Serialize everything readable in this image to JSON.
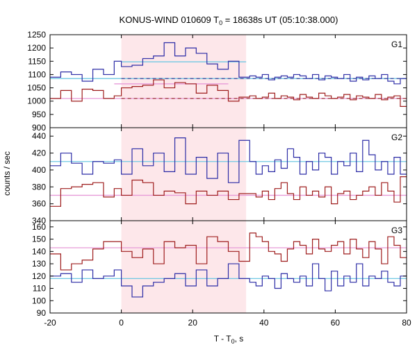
{
  "chart_data": {
    "type": "line",
    "title": "KONUS-WIND 010609 T",
    "title_sub": "0",
    "title_rest": " = 18638s UT (05:10:38.000)",
    "xlabel": "T - T",
    "xlabel_sub": "0",
    "xlabel_rest": ", s",
    "ylabel": "counts / sec",
    "xlim": [
      -20,
      80
    ],
    "xticks": [
      "-20",
      "0",
      "20",
      "40",
      "60",
      "80"
    ],
    "highlight_interval": [
      0,
      35
    ],
    "colors": {
      "blue": "#2c2ca6",
      "red": "#9e1c1c",
      "cyan": "#6fc8e3",
      "pink": "#e79ad8",
      "highlight": "#fde7ea"
    },
    "panels": [
      {
        "label": "G1",
        "ylim": [
          900,
          1250
        ],
        "yticks": [
          "1250",
          "1200",
          "1150",
          "1100",
          "1050",
          "1000",
          "950",
          "900"
        ],
        "bin_edges": [
          -20,
          -17,
          -14,
          -11,
          -8,
          -5,
          -2,
          0,
          3,
          6,
          9,
          12,
          15,
          18,
          21,
          24,
          27,
          30,
          33,
          36
        ],
        "blue_values": [
          1090,
          1110,
          1100,
          1075,
          1120,
          1100,
          1150,
          1130,
          1135,
          1160,
          1170,
          1220,
          1170,
          1200,
          1180,
          1140,
          1120,
          1150,
          1090
        ],
        "red_values": [
          1010,
          1040,
          1000,
          1045,
          1040,
          1010,
          1020,
          1050,
          1055,
          1060,
          1080,
          1050,
          1070,
          1065,
          1030,
          1060,
          1040,
          1000,
          1015
        ],
        "blue_after": [
          1095,
          1090,
          1100,
          1080,
          1090,
          1095,
          1090,
          1100,
          1095,
          1085,
          1100,
          1080,
          1095,
          1090,
          1085,
          1100,
          1075,
          1090,
          1080,
          1095,
          1085,
          1100,
          1075,
          1065,
          1085
        ],
        "red_after": [
          1020,
          1010,
          1015,
          1030,
          1010,
          1020,
          1015,
          1005,
          1025,
          1015,
          1010,
          1030,
          1020,
          1010,
          1015,
          1025,
          1005,
          1020,
          1015,
          1010,
          1025,
          1005,
          1015,
          1020,
          980
        ],
        "blue_bg": 1085,
        "red_bg": 1010,
        "blue_src_level": 1148,
        "red_src_level": 1065,
        "blue_bg_dashed": 1085,
        "red_bg_dashed": 1010
      },
      {
        "label": "G2",
        "ylim": [
          340,
          450
        ],
        "yticks": [
          "440",
          "420",
          "400",
          "380",
          "360",
          "340"
        ],
        "bin_edges": [
          -20,
          -17,
          -14,
          -11,
          -8,
          -5,
          -2,
          0,
          3,
          6,
          9,
          12,
          15,
          18,
          21,
          24,
          27,
          30,
          33,
          36
        ],
        "blue_values": [
          405,
          420,
          408,
          395,
          410,
          408,
          412,
          395,
          425,
          405,
          420,
          398,
          438,
          395,
          415,
          390,
          420,
          385,
          435
        ],
        "red_values": [
          357,
          378,
          380,
          383,
          385,
          368,
          378,
          370,
          388,
          385,
          370,
          375,
          373,
          360,
          375,
          370,
          375,
          365,
          372
        ],
        "blue_after": [
          410,
          395,
          405,
          398,
          412,
          402,
          425,
          415,
          395,
          410,
          400,
          420,
          415,
          395,
          410,
          405,
          420,
          398,
          435,
          418,
          400,
          410,
          395,
          415,
          395
        ],
        "red_after": [
          372,
          368,
          375,
          365,
          378,
          385,
          372,
          365,
          380,
          370,
          375,
          368,
          380,
          360,
          372,
          375,
          365,
          370,
          375,
          380,
          370,
          385,
          375,
          362,
          392
        ],
        "blue_bg": 410,
        "red_bg": 370
      },
      {
        "label": "G3",
        "ylim": [
          90,
          165
        ],
        "yticks": [
          "160",
          "150",
          "140",
          "130",
          "120",
          "110",
          "100",
          "90"
        ],
        "bin_edges": [
          -20,
          -17,
          -14,
          -11,
          -8,
          -5,
          -2,
          0,
          3,
          6,
          9,
          12,
          15,
          18,
          21,
          24,
          27,
          30,
          33,
          36
        ],
        "blue_values": [
          120,
          122,
          115,
          125,
          118,
          120,
          125,
          112,
          103,
          112,
          115,
          118,
          122,
          112,
          125,
          112,
          118,
          130,
          118
        ],
        "red_values": [
          138,
          125,
          130,
          133,
          142,
          148,
          148,
          140,
          135,
          142,
          130,
          148,
          143,
          145,
          130,
          152,
          148,
          140,
          132
        ],
        "blue_after": [
          115,
          112,
          120,
          118,
          110,
          122,
          118,
          115,
          120,
          112,
          130,
          118,
          108,
          124,
          112,
          120,
          115,
          130,
          112,
          120,
          118,
          124,
          115,
          112,
          120
        ],
        "red_after": [
          155,
          152,
          148,
          140,
          138,
          132,
          142,
          148,
          145,
          138,
          150,
          142,
          140,
          145,
          148,
          138,
          150,
          142,
          135,
          148,
          142,
          130,
          152,
          145,
          135
        ],
        "blue_bg": 118,
        "red_bg": 143
      }
    ]
  }
}
